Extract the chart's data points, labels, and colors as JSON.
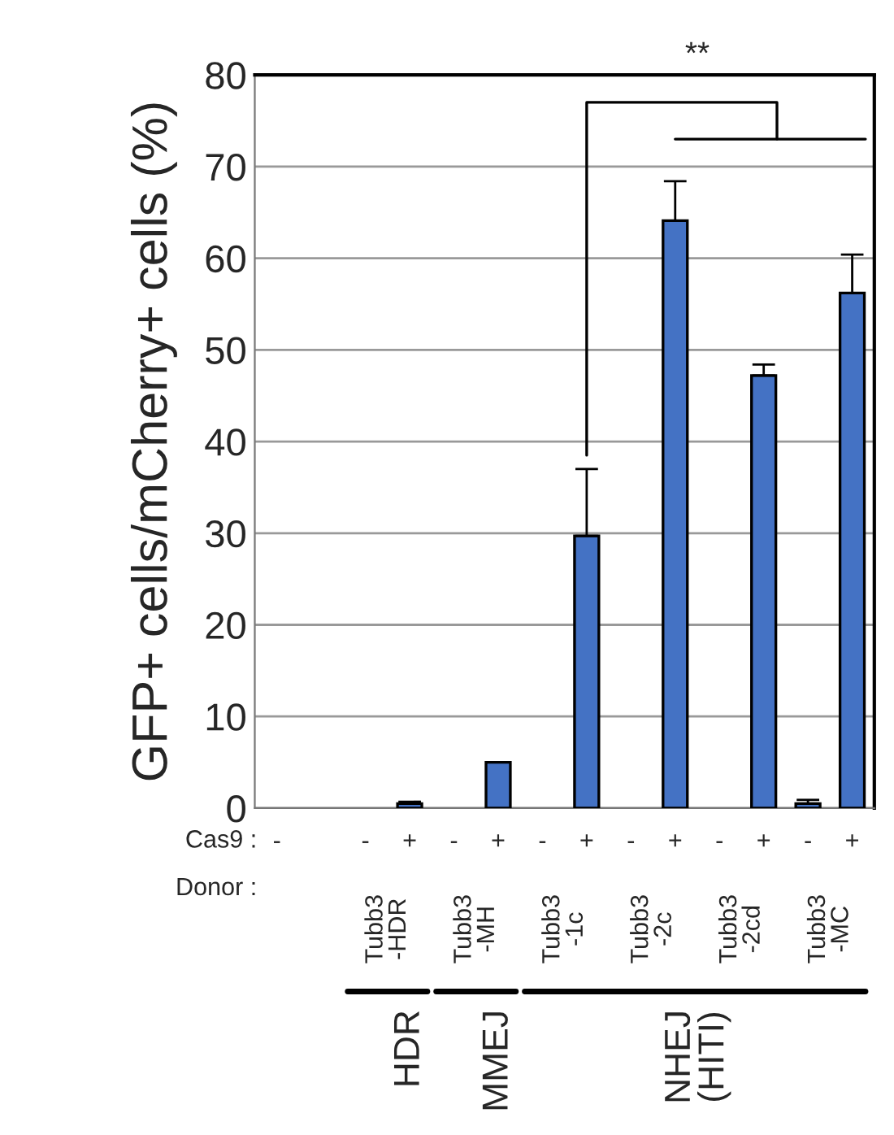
{
  "chart_data": {
    "type": "bar",
    "ylabel": "GFP+ cells/mCherry+ cells (%)",
    "categories": [
      "-",
      null,
      "-",
      "+",
      "-",
      "+",
      "-",
      "+",
      "-",
      "+",
      "-",
      "+",
      "-",
      "+"
    ],
    "values": [
      null,
      null,
      null,
      0.5,
      null,
      5.0,
      null,
      29.7,
      null,
      64.1,
      null,
      47.2,
      0.5,
      56.2
    ],
    "errors": [
      null,
      null,
      null,
      0.2,
      null,
      null,
      null,
      7.3,
      null,
      4.3,
      null,
      1.2,
      0.4,
      4.2
    ],
    "color": "#4472c4",
    "ylim": [
      0,
      80
    ],
    "yticks": [
      0,
      10,
      20,
      30,
      40,
      50,
      60,
      70,
      80
    ],
    "grid": "y",
    "annotations": [
      "Cas9 :",
      "Donor :",
      "Tubb3\n-HDR",
      "Tubb3\n-MH",
      "Tubb3\n-1c",
      "Tubb3\n-2c",
      "Tubb3\n-2cd",
      "Tubb3\n-MC",
      "HDR",
      "MMEJ",
      "NHEJ\n(HITI)",
      "**"
    ]
  }
}
